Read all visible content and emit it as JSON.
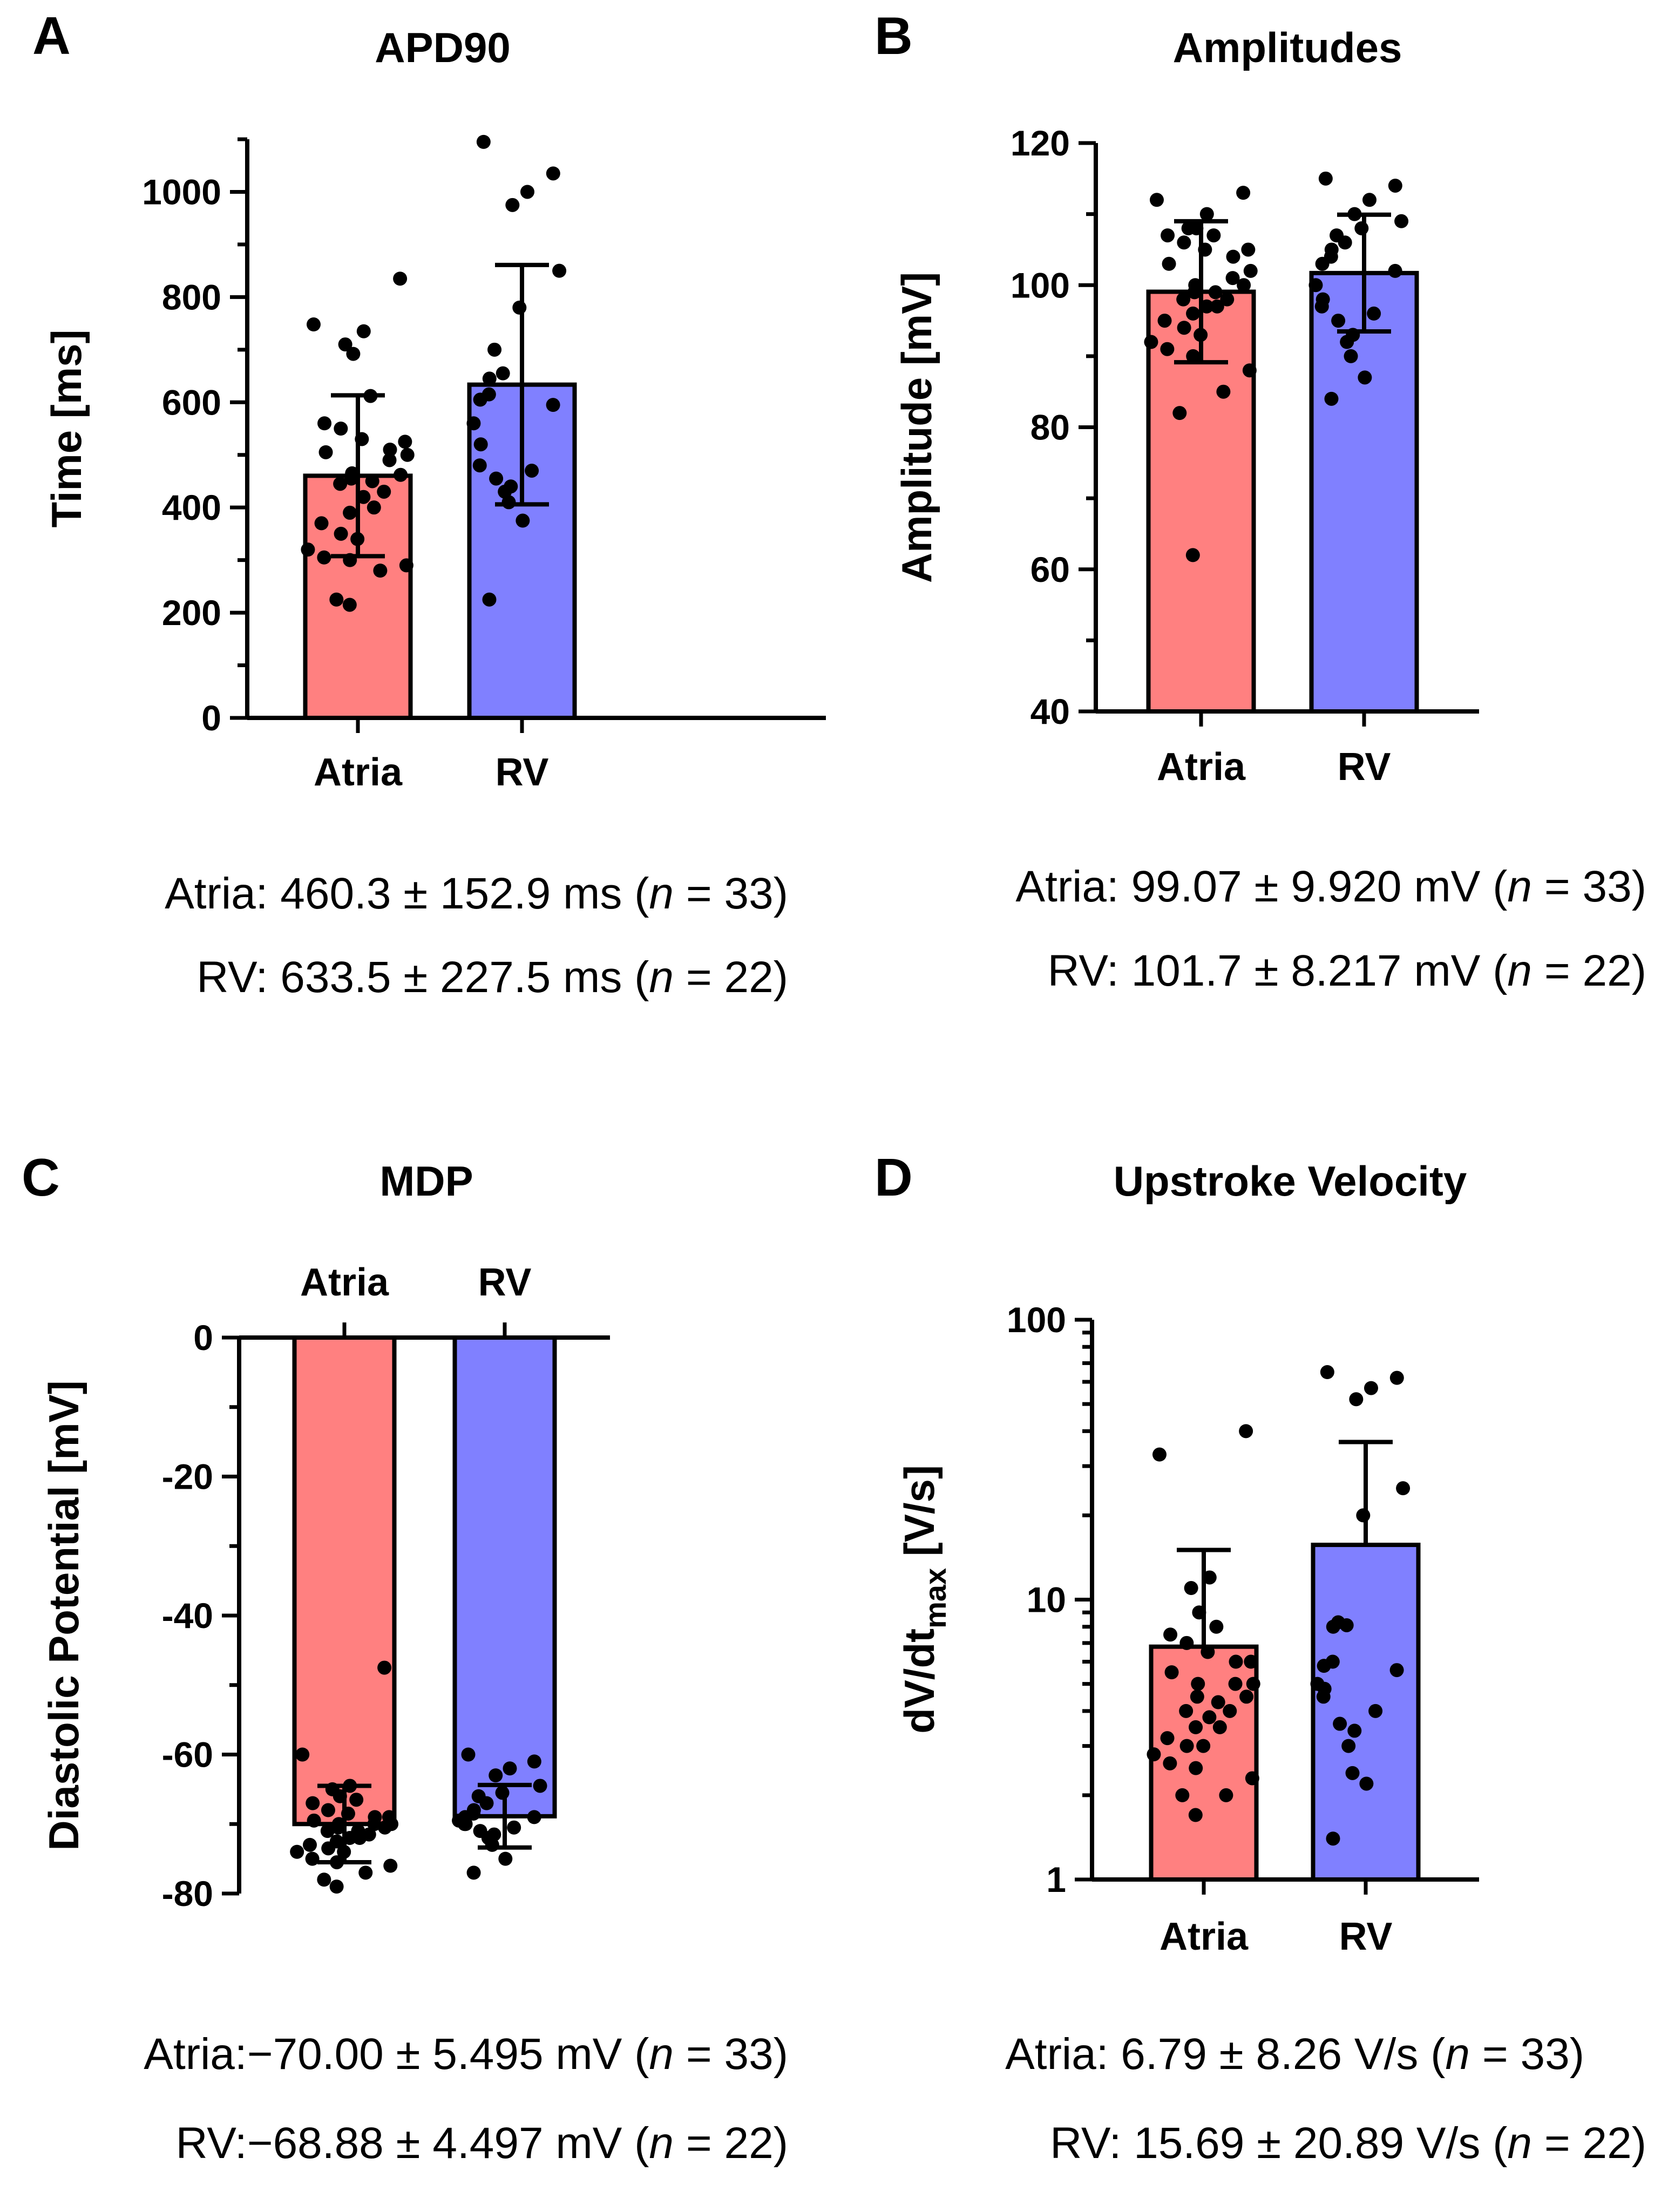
{
  "colors": {
    "atria": "#ff8080",
    "rv": "#8080ff",
    "outline": "#000000"
  },
  "chart_data": [
    {
      "panel": "A",
      "type": "bar",
      "title": "APD90",
      "ylabel": "Time [ms]",
      "yscale": "linear",
      "ylim": [
        0,
        1100
      ],
      "yticks": [
        0,
        200,
        400,
        600,
        800,
        1000
      ],
      "ytick_labels": [
        "0",
        "200",
        "400",
        "600",
        "800",
        "1000"
      ],
      "minor_step": 100,
      "category_position": "bottom",
      "categories": [
        "Atria",
        "RV"
      ],
      "series": [
        {
          "name": "Atria",
          "mean": 460.3,
          "sd": 152.9,
          "n": 33,
          "points": [
            835,
            748,
            735,
            710,
            692,
            612,
            560,
            550,
            530,
            525,
            510,
            505,
            500,
            490,
            465,
            462,
            455,
            450,
            445,
            430,
            420,
            400,
            390,
            370,
            350,
            340,
            320,
            305,
            300,
            290,
            280,
            225,
            215
          ]
        },
        {
          "name": "RV",
          "mean": 633.5,
          "sd": 227.5,
          "n": 22,
          "points": [
            1095,
            1035,
            1000,
            975,
            850,
            780,
            700,
            655,
            645,
            615,
            605,
            595,
            560,
            520,
            480,
            470,
            455,
            440,
            430,
            410,
            375,
            225
          ]
        }
      ],
      "summary": [
        {
          "group": "Atria:",
          "stat": "460.3 ± 152.9 ms",
          "n_label": "n",
          "n_text": " = 33)"
        },
        {
          "group": "RV:",
          "stat": "633.5 ± 227.5 ms",
          "n_label": "n",
          "n_text": " = 22)"
        }
      ]
    },
    {
      "panel": "B",
      "type": "bar",
      "title": "Amplitudes",
      "ylabel": "Amplitude [mV]",
      "yscale": "linear",
      "ylim": [
        40,
        120
      ],
      "yticks": [
        40,
        60,
        80,
        100,
        120
      ],
      "ytick_labels": [
        "40",
        "60",
        "80",
        "100",
        "120"
      ],
      "minor_step": 10,
      "category_position": "bottom",
      "categories": [
        "Atria",
        "RV"
      ],
      "series": [
        {
          "name": "Atria",
          "mean": 99.07,
          "sd": 9.92,
          "n": 33,
          "points": [
            113,
            112,
            110,
            108,
            108,
            107,
            107,
            106,
            105,
            105,
            104,
            103,
            102,
            101,
            100,
            100,
            99,
            99,
            98,
            98,
            97,
            97,
            96,
            95,
            94,
            93,
            92,
            91,
            90,
            88,
            85,
            82,
            62
          ]
        },
        {
          "name": "RV",
          "mean": 101.7,
          "sd": 8.217,
          "n": 22,
          "points": [
            115,
            114,
            112,
            110,
            109,
            108,
            107,
            106,
            105,
            104,
            103,
            102,
            100,
            98,
            97,
            96,
            95,
            93,
            92,
            90,
            87,
            84
          ]
        }
      ],
      "summary": [
        {
          "group": "Atria:",
          "stat": "99.07 ± 9.920 mV",
          "n_label": "n",
          "n_text": " = 33)"
        },
        {
          "group": "RV:",
          "stat": "101.7 ± 8.217 mV",
          "n_label": "n",
          "n_text": " = 22)"
        }
      ]
    },
    {
      "panel": "C",
      "type": "bar",
      "title": "MDP",
      "ylabel": "Diastolic Potential [mV]",
      "yscale": "linear",
      "ylim": [
        -80,
        0
      ],
      "yticks": [
        -80,
        -60,
        -40,
        -20,
        0
      ],
      "ytick_labels": [
        "-80",
        "-60",
        "-40",
        "-20",
        "0"
      ],
      "minor_step": 10,
      "category_position": "top",
      "categories": [
        "Atria",
        "RV"
      ],
      "series": [
        {
          "name": "Atria",
          "mean": -70.0,
          "sd": 5.495,
          "n": 33,
          "points": [
            -47.5,
            -60,
            -64.5,
            -65,
            -66,
            -66.5,
            -67,
            -68,
            -68.5,
            -69,
            -69,
            -69.5,
            -70,
            -70,
            -70,
            -70.5,
            -70.5,
            -71,
            -71,
            -71.5,
            -72,
            -72,
            -72.5,
            -73,
            -73.5,
            -74,
            -74,
            -75,
            -75.5,
            -76,
            -77,
            -78,
            -79
          ]
        },
        {
          "name": "RV",
          "mean": -68.88,
          "sd": 4.497,
          "n": 22,
          "points": [
            -60,
            -61,
            -62,
            -63,
            -64.5,
            -65.5,
            -66,
            -67,
            -68,
            -68.5,
            -69,
            -69,
            -69.5,
            -70,
            -70,
            -70.5,
            -71,
            -71.5,
            -72,
            -73,
            -75,
            -77
          ]
        }
      ],
      "summary": [
        {
          "group": "Atria:",
          "stat": "−70.00 ± 5.495 mV",
          "n_label": "n",
          "n_text": " = 33)"
        },
        {
          "group": "RV:",
          "stat": "−68.88 ± 4.497 mV",
          "n_label": "n",
          "n_text": " = 22)"
        }
      ]
    },
    {
      "panel": "D",
      "type": "bar",
      "title": "Upstroke Velocity",
      "ylabel": "dV/dt",
      "ylabel_sub": "max",
      "ylabel_unit": " [V/s]",
      "yscale": "log",
      "ylim": [
        1,
        100
      ],
      "yticks": [
        1,
        10,
        100
      ],
      "ytick_labels": [
        "1",
        "10",
        "100"
      ],
      "category_position": "bottom",
      "categories": [
        "Atria",
        "RV"
      ],
      "series": [
        {
          "name": "Atria",
          "mean": 6.79,
          "sd": 8.26,
          "n": 33,
          "points": [
            40,
            33,
            12,
            11,
            9,
            8,
            7.5,
            7,
            6.5,
            6,
            6,
            5.5,
            5,
            5,
            5,
            4.5,
            4.5,
            4.3,
            4,
            4,
            3.8,
            3.5,
            3.5,
            3.2,
            3,
            3,
            2.8,
            2.6,
            2.5,
            2.3,
            2.0,
            2.0,
            1.7
          ]
        },
        {
          "name": "RV",
          "mean": 15.69,
          "sd": 20.89,
          "n": 22,
          "points": [
            65,
            62,
            57,
            52,
            25,
            20,
            8.3,
            8.1,
            8.0,
            6.0,
            5.8,
            5.6,
            5.0,
            4.8,
            4.5,
            4.0,
            3.6,
            3.4,
            3.0,
            2.4,
            2.2,
            1.4
          ]
        }
      ],
      "summary": [
        {
          "group": "Atria:",
          "stat": "6.79 ± 8.26 V/s",
          "n_label": "n",
          "n_text": " = 33)"
        },
        {
          "group": "RV:",
          "stat": "15.69 ± 20.89 V/s",
          "n_label": "n",
          "n_text": " = 22)"
        }
      ]
    }
  ]
}
